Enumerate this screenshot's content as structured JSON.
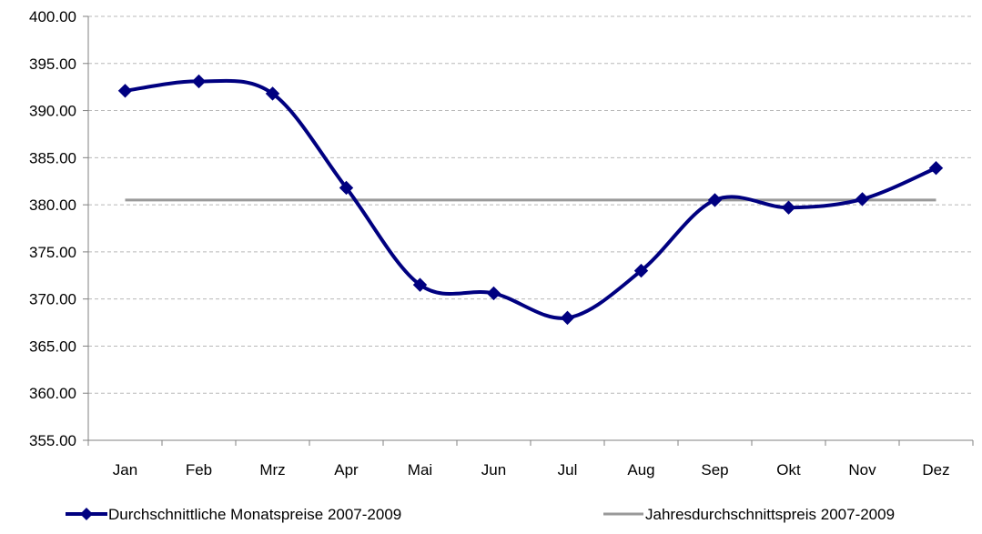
{
  "chart_data": {
    "type": "line",
    "categories": [
      "Jan",
      "Feb",
      "Mrz",
      "Apr",
      "Mai",
      "Jun",
      "Jul",
      "Aug",
      "Sep",
      "Okt",
      "Nov",
      "Dez"
    ],
    "series": [
      {
        "name": "Durchschnittliche Monatspreise 2007-2009",
        "color": "#000080",
        "marker": "diamond",
        "smooth": true,
        "values": [
          392.1,
          393.1,
          391.8,
          381.8,
          371.5,
          370.6,
          368.0,
          373.0,
          380.5,
          379.7,
          380.6,
          383.9
        ]
      },
      {
        "name": "Jahresdurchschnittspreis 2007-2009",
        "color": "#999999",
        "marker": "none",
        "values": [
          380.5,
          380.5,
          380.5,
          380.5,
          380.5,
          380.5,
          380.5,
          380.5,
          380.5,
          380.5,
          380.5,
          380.5
        ]
      }
    ],
    "ylim": [
      355,
      400
    ],
    "ytick_step": 5,
    "ytick_labels": [
      "355.00",
      "360.00",
      "365.00",
      "370.00",
      "375.00",
      "380.00",
      "385.00",
      "390.00",
      "395.00",
      "400.00"
    ],
    "grid": "horizontal-dashed",
    "legend_position": "bottom",
    "title": "",
    "xlabel": "",
    "ylabel": ""
  }
}
